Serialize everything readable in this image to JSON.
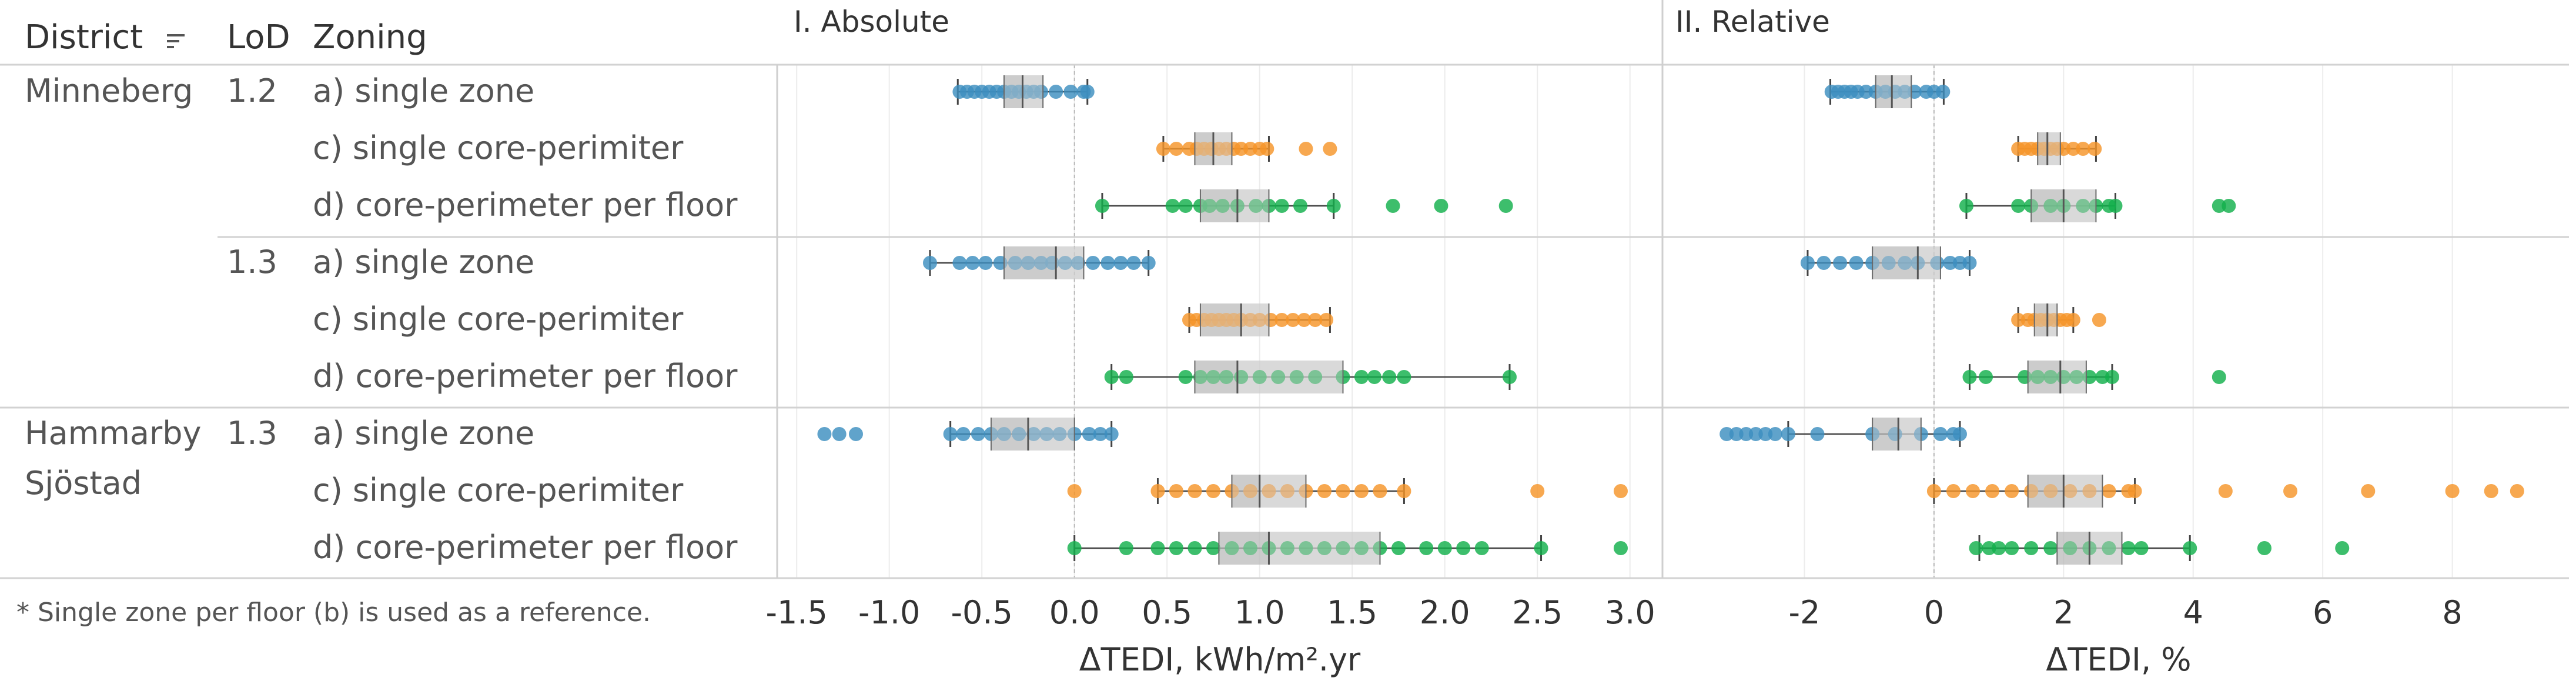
{
  "chart_data": {
    "type": "boxplot-strip",
    "table_headers": {
      "district": "District",
      "lod": "LoD",
      "zoning": "Zoning"
    },
    "sort_icon": "sort-lines-icon",
    "panels": [
      {
        "title": "I. Absolute",
        "xlabel": "ΔTEDI, kWh/m².yr",
        "xlim": [
          -1.58,
          3.15
        ],
        "ticks": [
          -1.5,
          -1.0,
          -0.5,
          0.0,
          0.5,
          1.0,
          1.5,
          2.0,
          2.5,
          3.0
        ],
        "tick_labels": [
          "-1.5",
          "-1.0",
          "-0.5",
          "0.0",
          "0.5",
          "1.0",
          "1.5",
          "2.0",
          "2.5",
          "3.0"
        ]
      },
      {
        "title": "II. Relative",
        "xlabel": "ΔTEDI, %",
        "xlim": [
          -4.1,
          9.8
        ],
        "ticks": [
          -2,
          0,
          2,
          4,
          6,
          8
        ],
        "tick_labels": [
          "-2",
          "0",
          "2",
          "4",
          "6",
          "8"
        ]
      }
    ],
    "colors": {
      "a) single zone": "#3d8fbf",
      "c) single core-perimiter": "#f5952a",
      "d) core-perimeter per floor": "#12b04c"
    },
    "groups": [
      {
        "district": "Minneberg",
        "lod": "1.2",
        "rows": [
          {
            "zoning": "a) single zone",
            "abs": {
              "stats": [
                -0.63,
                -0.38,
                -0.28,
                -0.17,
                0.07
              ],
              "points": [
                -0.62,
                -0.58,
                -0.54,
                -0.5,
                -0.46,
                -0.42,
                -0.38,
                -0.34,
                -0.3,
                -0.26,
                -0.22,
                -0.18,
                -0.1,
                -0.02,
                0.05,
                0.07
              ]
            },
            "rel": {
              "stats": [
                -1.6,
                -0.9,
                -0.65,
                -0.35,
                0.15
              ],
              "points": [
                -1.58,
                -1.48,
                -1.38,
                -1.28,
                -1.18,
                -1.05,
                -0.9,
                -0.75,
                -0.6,
                -0.45,
                -0.3,
                -0.12,
                0.0,
                0.14
              ]
            }
          },
          {
            "zoning": "c) single core-perimiter",
            "abs": {
              "stats": [
                0.48,
                0.65,
                0.75,
                0.85,
                1.05
              ],
              "points": [
                0.48,
                0.55,
                0.62,
                0.66,
                0.7,
                0.74,
                0.78,
                0.82,
                0.86,
                0.9,
                0.95,
                1.0,
                1.04,
                1.25,
                1.38
              ]
            },
            "rel": {
              "stats": [
                1.3,
                1.6,
                1.75,
                1.95,
                2.5
              ],
              "points": [
                1.3,
                1.4,
                1.5,
                1.6,
                1.7,
                1.8,
                1.9,
                2.0,
                2.15,
                2.3,
                2.48
              ]
            }
          },
          {
            "zoning": "d) core-perimeter per floor",
            "abs": {
              "stats": [
                0.15,
                0.68,
                0.88,
                1.05,
                1.4
              ],
              "points": [
                0.15,
                0.53,
                0.6,
                0.68,
                0.73,
                0.8,
                0.88,
                0.98,
                1.05,
                1.12,
                1.22,
                1.4,
                1.72,
                1.98,
                2.33
              ]
            },
            "rel": {
              "stats": [
                0.5,
                1.5,
                2.0,
                2.5,
                2.8
              ],
              "points": [
                0.5,
                1.3,
                1.5,
                1.8,
                2.0,
                2.3,
                2.5,
                2.7,
                2.8,
                4.4,
                4.55
              ]
            }
          }
        ]
      },
      {
        "district": "",
        "lod": "1.3",
        "rows": [
          {
            "zoning": "a) single zone",
            "abs": {
              "stats": [
                -0.78,
                -0.38,
                -0.1,
                0.05,
                0.4
              ],
              "points": [
                -0.78,
                -0.62,
                -0.55,
                -0.48,
                -0.4,
                -0.32,
                -0.25,
                -0.18,
                -0.12,
                -0.05,
                0.02,
                0.1,
                0.18,
                0.25,
                0.32,
                0.4
              ]
            },
            "rel": {
              "stats": [
                -1.95,
                -0.95,
                -0.25,
                0.1,
                0.55
              ],
              "points": [
                -1.95,
                -1.7,
                -1.45,
                -1.2,
                -0.95,
                -0.7,
                -0.45,
                -0.25,
                0.05,
                0.25,
                0.4,
                0.55
              ]
            }
          },
          {
            "zoning": "c) single core-perimiter",
            "abs": {
              "stats": [
                0.62,
                0.68,
                0.9,
                1.05,
                1.38
              ],
              "points": [
                0.62,
                0.66,
                0.7,
                0.74,
                0.78,
                0.82,
                0.86,
                0.9,
                0.95,
                1.0,
                1.06,
                1.12,
                1.18,
                1.24,
                1.3,
                1.36
              ]
            },
            "rel": {
              "stats": [
                1.3,
                1.55,
                1.75,
                1.9,
                2.15
              ],
              "points": [
                1.3,
                1.45,
                1.55,
                1.65,
                1.75,
                1.85,
                1.95,
                2.05,
                2.15,
                2.55
              ]
            }
          },
          {
            "zoning": "d) core-perimeter per floor",
            "abs": {
              "stats": [
                0.2,
                0.65,
                0.88,
                1.45,
                2.35
              ],
              "points": [
                0.2,
                0.28,
                0.6,
                0.68,
                0.75,
                0.82,
                0.9,
                1.0,
                1.1,
                1.2,
                1.3,
                1.45,
                1.55,
                1.62,
                1.7,
                1.78,
                2.35
              ]
            },
            "rel": {
              "stats": [
                0.55,
                1.45,
                1.95,
                2.35,
                2.75
              ],
              "points": [
                0.55,
                0.8,
                1.4,
                1.6,
                1.8,
                2.0,
                2.2,
                2.4,
                2.6,
                2.75,
                4.4
              ]
            }
          }
        ]
      },
      {
        "district": "Hammarby Sjöstad",
        "lod": "1.3",
        "rows": [
          {
            "zoning": "a) single zone",
            "abs": {
              "stats": [
                -0.67,
                -0.45,
                -0.25,
                0.0,
                0.2
              ],
              "points": [
                -1.35,
                -1.27,
                -1.18,
                -0.67,
                -0.6,
                -0.52,
                -0.45,
                -0.38,
                -0.3,
                -0.22,
                -0.15,
                -0.08,
                0.0,
                0.08,
                0.14,
                0.2
              ]
            },
            "rel": {
              "stats": [
                -2.25,
                -0.95,
                -0.55,
                -0.2,
                0.4
              ],
              "points": [
                -3.2,
                -3.05,
                -2.9,
                -2.75,
                -2.6,
                -2.45,
                -2.25,
                -1.8,
                -0.95,
                -0.6,
                -0.2,
                0.1,
                0.3,
                0.4
              ]
            }
          },
          {
            "zoning": "c) single core-perimiter",
            "abs": {
              "stats": [
                0.45,
                0.85,
                1.0,
                1.25,
                1.78
              ],
              "points": [
                0.0,
                0.45,
                0.55,
                0.65,
                0.75,
                0.85,
                0.95,
                1.05,
                1.15,
                1.25,
                1.35,
                1.45,
                1.55,
                1.65,
                1.78,
                2.5,
                2.95
              ]
            },
            "rel": {
              "stats": [
                0.0,
                1.45,
                2.0,
                2.6,
                3.1
              ],
              "points": [
                0.0,
                0.3,
                0.6,
                0.9,
                1.2,
                1.5,
                1.8,
                2.1,
                2.4,
                2.7,
                3.0,
                3.1,
                4.5,
                5.5,
                6.7,
                8.0,
                8.6,
                9.0
              ]
            }
          },
          {
            "zoning": "d) core-perimeter per floor",
            "abs": {
              "stats": [
                0.0,
                0.78,
                1.05,
                1.65,
                2.52
              ],
              "points": [
                0.0,
                0.28,
                0.45,
                0.55,
                0.65,
                0.75,
                0.85,
                0.95,
                1.05,
                1.15,
                1.25,
                1.35,
                1.45,
                1.55,
                1.65,
                1.75,
                1.9,
                2.0,
                2.1,
                2.2,
                2.52,
                2.95
              ]
            },
            "rel": {
              "stats": [
                0.7,
                1.9,
                2.4,
                2.9,
                3.95
              ],
              "points": [
                0.65,
                0.85,
                1.0,
                1.2,
                1.5,
                1.8,
                2.1,
                2.4,
                2.7,
                3.0,
                3.2,
                3.95,
                5.1,
                6.3
              ]
            }
          }
        ]
      }
    ],
    "footnote": "* Single zone per floor (b) is used as a reference."
  }
}
